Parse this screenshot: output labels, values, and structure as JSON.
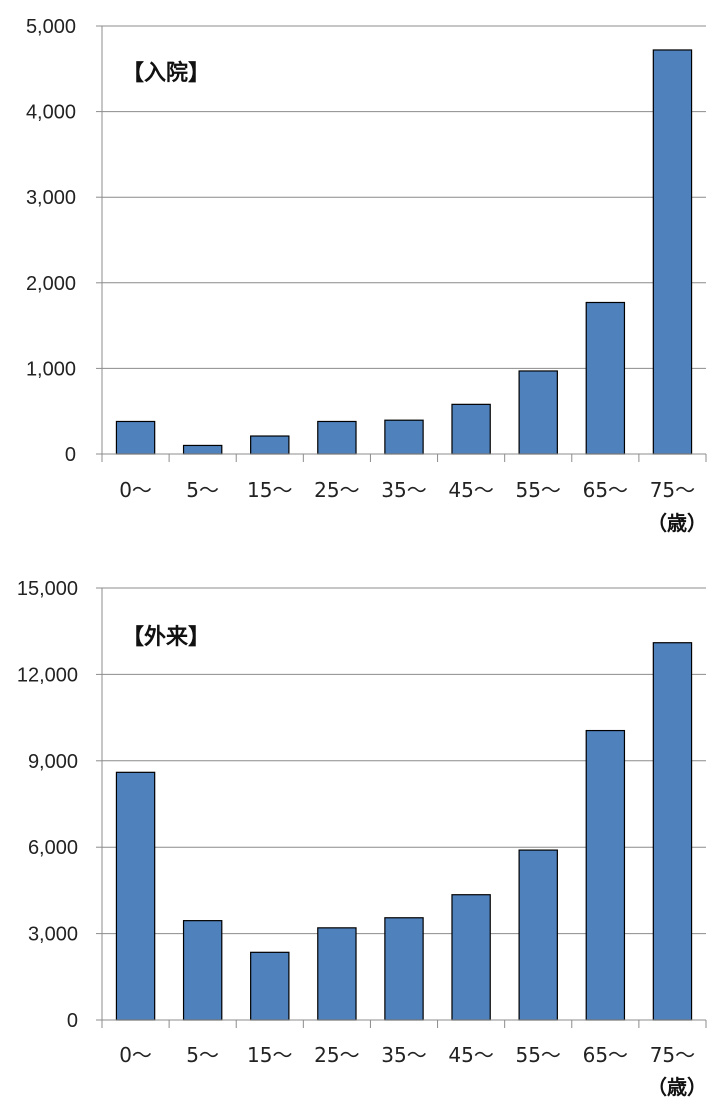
{
  "chart_data": [
    {
      "type": "bar",
      "title": "【入院】",
      "categories": [
        "0〜",
        "5〜",
        "15〜",
        "25〜",
        "35〜",
        "45〜",
        "55〜",
        "65〜",
        "75〜"
      ],
      "values": [
        380,
        100,
        210,
        380,
        395,
        580,
        970,
        1770,
        4720
      ],
      "ylim": [
        0,
        5000
      ],
      "yticks": [
        "0",
        "1,000",
        "2,000",
        "3,000",
        "4,000",
        "5,000"
      ],
      "ytick_values": [
        0,
        1000,
        2000,
        3000,
        4000,
        5000
      ],
      "x_unit_label": "（歳）",
      "grid": true,
      "bar_color": "#4F81BD"
    },
    {
      "type": "bar",
      "title": "【外来】",
      "categories": [
        "0〜",
        "5〜",
        "15〜",
        "25〜",
        "35〜",
        "45〜",
        "55〜",
        "65〜",
        "75〜"
      ],
      "values": [
        8600,
        3450,
        2350,
        3200,
        3550,
        4350,
        5900,
        10050,
        13100
      ],
      "ylim": [
        0,
        15000
      ],
      "yticks": [
        "0",
        "3,000",
        "6,000",
        "9,000",
        "12,000",
        "15,000"
      ],
      "ytick_values": [
        0,
        3000,
        6000,
        9000,
        12000,
        15000
      ],
      "x_unit_label": "（歳）",
      "grid": true,
      "bar_color": "#4F81BD"
    }
  ]
}
